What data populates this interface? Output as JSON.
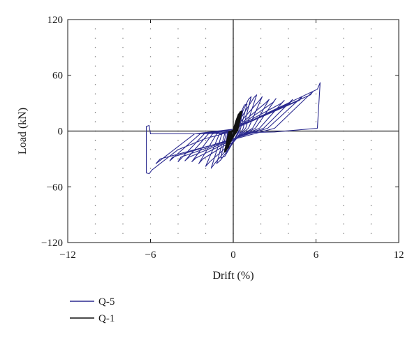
{
  "chart_data": {
    "type": "line",
    "title": "",
    "xlabel": "Drift (%)",
    "ylabel": "Load (kN)",
    "xlim": [
      -12,
      12
    ],
    "ylim": [
      -120,
      120
    ],
    "xticks": [
      -12,
      -6,
      0,
      6,
      12
    ],
    "yticks": [
      -120,
      -60,
      0,
      60,
      120
    ],
    "xtick_labels": [
      "−12",
      "−6",
      "0",
      "6",
      "12"
    ],
    "ytick_labels": [
      "−120",
      "−60",
      "0",
      "60",
      "120"
    ],
    "grid": "dotted",
    "legend_position": "bottom-left",
    "series": [
      {
        "name": "Q-5",
        "color": "#2b2a8f",
        "values": [
          [
            0,
            0
          ],
          [
            0.5,
            21
          ],
          [
            0.7,
            22
          ],
          [
            0.4,
            0
          ],
          [
            -0.4,
            -21
          ],
          [
            -0.6,
            -22
          ],
          [
            -0.4,
            0
          ],
          [
            0,
            0
          ],
          [
            0.8,
            28
          ],
          [
            1.0,
            29
          ],
          [
            0.5,
            1
          ],
          [
            -0.6,
            -27
          ],
          [
            -0.9,
            -29
          ],
          [
            -0.5,
            -1
          ],
          [
            0,
            0
          ],
          [
            1.1,
            34
          ],
          [
            1.3,
            37
          ],
          [
            0.7,
            2
          ],
          [
            -0.9,
            -31
          ],
          [
            -1.2,
            -35
          ],
          [
            -0.6,
            -2
          ],
          [
            0,
            1
          ],
          [
            1.5,
            36
          ],
          [
            1.7,
            39
          ],
          [
            0.9,
            3
          ],
          [
            -1.3,
            -34
          ],
          [
            -1.6,
            -40
          ],
          [
            -0.8,
            -2
          ],
          [
            0,
            1
          ],
          [
            1.9,
            33
          ],
          [
            2.1,
            37
          ],
          [
            1.1,
            3
          ],
          [
            -1.7,
            -33
          ],
          [
            -2.0,
            -38
          ],
          [
            -1.0,
            -3
          ],
          [
            0,
            1
          ],
          [
            2.4,
            31
          ],
          [
            2.6,
            34
          ],
          [
            1.4,
            3
          ],
          [
            -2.2,
            -30
          ],
          [
            -2.5,
            -35
          ],
          [
            -1.2,
            -3
          ],
          [
            0,
            1
          ],
          [
            2.9,
            31
          ],
          [
            3.1,
            35
          ],
          [
            1.6,
            3
          ],
          [
            -2.7,
            -29
          ],
          [
            -3.0,
            -33
          ],
          [
            -1.5,
            -3
          ],
          [
            0,
            2
          ],
          [
            3.5,
            30
          ],
          [
            3.7,
            33
          ],
          [
            1.9,
            3
          ],
          [
            -3.2,
            -28
          ],
          [
            -3.5,
            -32
          ],
          [
            -1.8,
            -3
          ],
          [
            0,
            2
          ],
          [
            4.1,
            30
          ],
          [
            4.3,
            34
          ],
          [
            2.2,
            3
          ],
          [
            -3.8,
            -28
          ],
          [
            -4.0,
            -33
          ],
          [
            -2.1,
            -3
          ],
          [
            0,
            2
          ],
          [
            4.8,
            33
          ],
          [
            5.0,
            37
          ],
          [
            2.5,
            3
          ],
          [
            -4.4,
            -28
          ],
          [
            -4.6,
            -32
          ],
          [
            -2.4,
            -3
          ],
          [
            0,
            2
          ],
          [
            5.6,
            39
          ],
          [
            5.8,
            43
          ],
          [
            3.0,
            3
          ],
          [
            -5.3,
            -30
          ],
          [
            -5.6,
            -35
          ],
          [
            -2.8,
            -3
          ],
          [
            0,
            2
          ],
          [
            6.1,
            45
          ],
          [
            6.3,
            52
          ],
          [
            6.1,
            3
          ],
          [
            3.0,
            -1
          ],
          [
            0,
            -2
          ],
          [
            -3,
            -3
          ],
          [
            -6.0,
            -3
          ],
          [
            -6.1,
            6
          ],
          [
            -6.3,
            5
          ],
          [
            -6.3,
            -45
          ],
          [
            -6.1,
            -46
          ],
          [
            -5.9,
            -42
          ],
          [
            -4,
            -20
          ],
          [
            -2,
            -8
          ],
          [
            0,
            0
          ]
        ]
      },
      {
        "name": "Q-1",
        "color": "#111111",
        "values": [
          [
            0,
            0
          ],
          [
            0.2,
            10
          ],
          [
            0.3,
            14
          ],
          [
            0.1,
            0
          ],
          [
            -0.2,
            -10
          ],
          [
            -0.3,
            -14
          ],
          [
            -0.1,
            0
          ],
          [
            0,
            0
          ],
          [
            0.3,
            14
          ],
          [
            0.4,
            18
          ],
          [
            0.2,
            1
          ],
          [
            -0.3,
            -14
          ],
          [
            -0.4,
            -18
          ],
          [
            -0.2,
            -1
          ],
          [
            0,
            0
          ],
          [
            0.4,
            16
          ],
          [
            0.5,
            20
          ],
          [
            0.2,
            1
          ],
          [
            -0.4,
            -16
          ],
          [
            -0.5,
            -20
          ],
          [
            -0.2,
            -1
          ],
          [
            0,
            0
          ],
          [
            0.5,
            17
          ],
          [
            0.6,
            21
          ],
          [
            0.3,
            1
          ],
          [
            -0.5,
            -17
          ],
          [
            -0.6,
            -22
          ],
          [
            -0.3,
            -1
          ],
          [
            0,
            0
          ]
        ]
      }
    ]
  }
}
